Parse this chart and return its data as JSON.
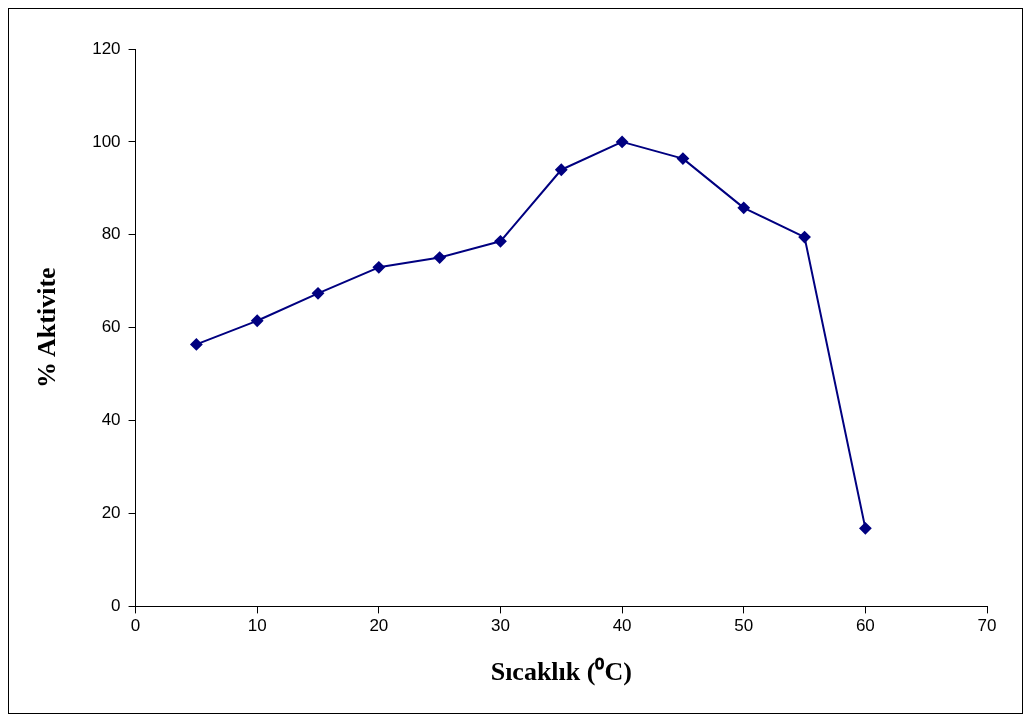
{
  "chart_data": {
    "type": "line",
    "xlabel": "Sıcaklık (⁰C)",
    "ylabel": "% Aktivite",
    "x": [
      5,
      10,
      15,
      20,
      25,
      30,
      35,
      40,
      45,
      50,
      55,
      60
    ],
    "series": [
      {
        "color": "#000080",
        "values": [
          56.4,
          61.5,
          67.4,
          73,
          75.1,
          78.6,
          94,
          100,
          96.4,
          85.8,
          79.5,
          16.8
        ]
      }
    ],
    "xlim": [
      0,
      70
    ],
    "xticks": [
      0,
      10,
      20,
      30,
      40,
      50,
      60,
      70
    ],
    "ylim": [
      0,
      120
    ],
    "yticks": [
      0,
      20,
      40,
      60,
      80,
      100,
      120
    ],
    "grid": false,
    "legend": false,
    "marker": "diamond",
    "line_style": "solid"
  }
}
